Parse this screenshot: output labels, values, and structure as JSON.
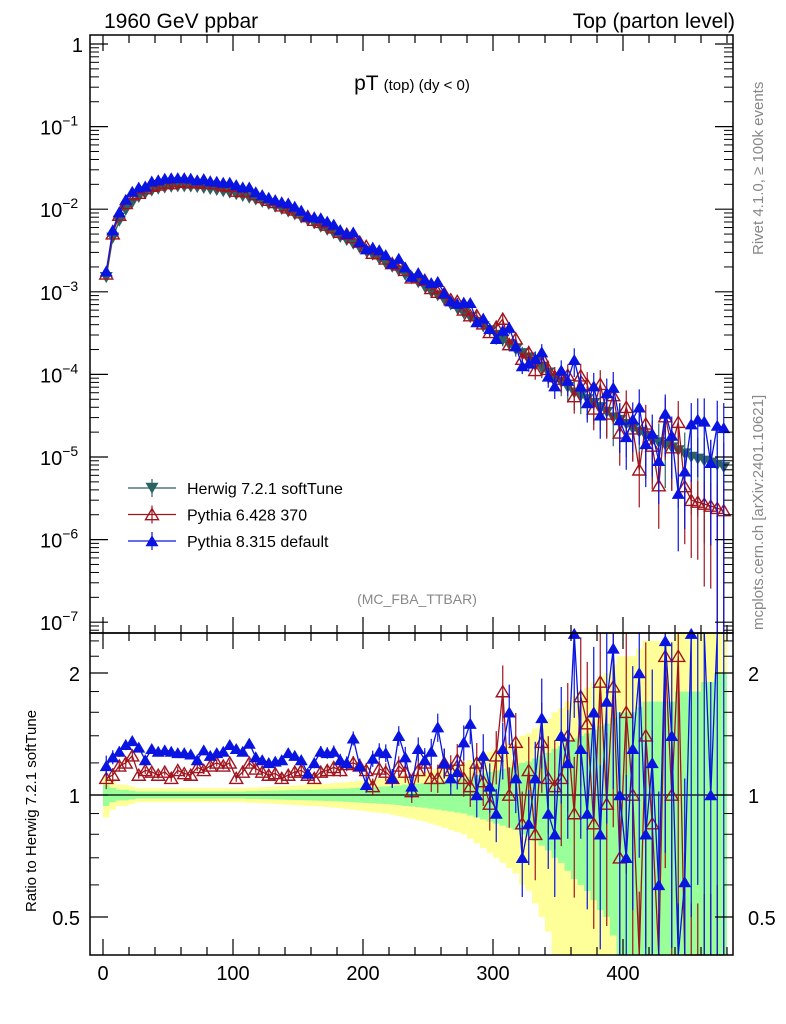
{
  "header": {
    "left": "1960 GeV ppbar",
    "right": "Top (parton level)",
    "title_main": "pT",
    "title_sub": "(top) (dy < 0)",
    "analysis": "(MC_FBA_TTBAR)",
    "side_rivet": "Rivet 4.1.0, ≥ 100k events",
    "side_mcplots": "mcplots.cern.ch [arXiv:2401.10621]"
  },
  "chart_data": {
    "type": "line",
    "title": "pT (top) (dy < 0)",
    "xlabel": "",
    "ylabel_ratio": "Ratio to Herwig 7.2.1 softTune",
    "xlim": [
      -10,
      485
    ],
    "ylim_main": [
      1e-07,
      1.6
    ],
    "ylim_ratio": [
      0.4,
      2.5
    ],
    "yscale": "log",
    "x_ticks": [
      "0",
      "100",
      "200",
      "300",
      "400"
    ],
    "x_tick_values": [
      0,
      100,
      200,
      300,
      400
    ],
    "y_ticks_main": [
      {
        "v": 1,
        "base": "1",
        "exp": ""
      },
      {
        "v": 0.1,
        "base": "10",
        "exp": "−1"
      },
      {
        "v": 0.01,
        "base": "10",
        "exp": "−2"
      },
      {
        "v": 0.001,
        "base": "10",
        "exp": "−3"
      },
      {
        "v": 0.0001,
        "base": "10",
        "exp": "−4"
      },
      {
        "v": 1e-05,
        "base": "10",
        "exp": "−5"
      },
      {
        "v": 1e-06,
        "base": "10",
        "exp": "−6"
      },
      {
        "v": 1e-07,
        "base": "10",
        "exp": "−7"
      }
    ],
    "y_ticks_ratio": [
      {
        "v": 0.5,
        "label": "0.5"
      },
      {
        "v": 1,
        "label": "1"
      },
      {
        "v": 2,
        "label": "2"
      }
    ],
    "legend_position": "lower-left",
    "x_start": 2.5,
    "bin_width": 5,
    "series": [
      {
        "name": "Herwig 7.2.1 softTune",
        "color": "#2e6262",
        "marker": "filled-down-triangle",
        "values": [
          0.0015,
          0.0045,
          0.0072,
          0.0098,
          0.012,
          0.014,
          0.0155,
          0.0167,
          0.0176,
          0.0182,
          0.0186,
          0.0188,
          0.0188,
          0.0187,
          0.0184,
          0.018,
          0.0175,
          0.017,
          0.0164,
          0.0158,
          0.0151,
          0.0144,
          0.0137,
          0.013,
          0.0122,
          0.0115,
          0.0107,
          0.01,
          0.0093,
          0.0086,
          0.0079,
          0.0073,
          0.0067,
          0.0061,
          0.0056,
          0.0051,
          0.0046,
          0.0042,
          0.0038,
          0.0034,
          0.0031,
          0.0028,
          0.0025,
          0.0022,
          0.002,
          0.0018,
          0.0016,
          0.00145,
          0.0013,
          0.00115,
          0.001,
          0.0009,
          0.0008,
          0.0007,
          0.00063,
          0.00055,
          0.00049,
          0.00043,
          0.00038,
          0.00034,
          0.0003,
          0.00026,
          0.00023,
          0.0002,
          0.00018,
          0.00016,
          0.00014,
          0.00012,
          0.000105,
          9e-05,
          8e-05,
          7e-05,
          6e-05,
          5.5e-05,
          5e-05,
          4.5e-05,
          4e-05,
          3.5e-05,
          3e-05,
          2.8e-05,
          2.5e-05,
          2.2e-05,
          2e-05,
          1.8e-05,
          1.6e-05,
          1.5e-05,
          1.4e-05,
          1.3e-05,
          1.2e-05,
          1.1e-05,
          1e-05,
          9.5e-06,
          9e-06,
          8.5e-06,
          8e-06,
          7.5e-06
        ],
        "rel_err": [
          0.06,
          0.04,
          0.03,
          0.03,
          0.025,
          0.02,
          0.02,
          0.02,
          0.02,
          0.02,
          0.02,
          0.02,
          0.02,
          0.02,
          0.02,
          0.02,
          0.02,
          0.02,
          0.02,
          0.02,
          0.02,
          0.02,
          0.022,
          0.022,
          0.023,
          0.024,
          0.025,
          0.026,
          0.027,
          0.028,
          0.029,
          0.03,
          0.031,
          0.032,
          0.033,
          0.035,
          0.036,
          0.038,
          0.04,
          0.042,
          0.044,
          0.046,
          0.048,
          0.05,
          0.053,
          0.056,
          0.06,
          0.063,
          0.067,
          0.07,
          0.075,
          0.08,
          0.085,
          0.09,
          0.095,
          0.1,
          0.11,
          0.12,
          0.13,
          0.14,
          0.15,
          0.16,
          0.17,
          0.18,
          0.2,
          0.21,
          0.23,
          0.25,
          0.27,
          0.3,
          0.32,
          0.35,
          0.38,
          0.4,
          0.42,
          0.45,
          0.48,
          0.5,
          0.55,
          0.6,
          0.6,
          0.6,
          0.65,
          0.7,
          0.7,
          0.7,
          0.7,
          0.7,
          0.8,
          0.8,
          0.8,
          0.8,
          0.9,
          0.9,
          1,
          1
        ]
      },
      {
        "name": "Pythia 6.428 370",
        "color": "#a0141e",
        "marker": "open-triangle",
        "ratio": [
          1.1,
          1.12,
          1.18,
          1.2,
          1.25,
          1.12,
          1.15,
          1.14,
          1.12,
          1.14,
          1.1,
          1.15,
          1.13,
          1.12,
          1.17,
          1.15,
          1.18,
          1.2,
          1.18,
          1.2,
          1.1,
          1.14,
          1.2,
          1.16,
          1.14,
          1.12,
          1.13,
          1.1,
          1.12,
          1.14,
          1.15,
          1.12,
          1.1,
          1.14,
          1.15,
          1.17,
          1.15,
          1.19,
          1.2,
          1.18,
          1.15,
          1.05,
          1.16,
          1.14,
          1.1,
          1.18,
          1.14,
          1.02,
          1.15,
          1.2,
          1.1,
          1.1,
          1.2,
          1.15,
          1.22,
          1.1,
          1.05,
          1.2,
          1.08,
          0.95,
          1.25,
          1.8,
          1.0,
          1.35,
          0.85,
          1.15,
          0.8,
          1.35,
          1.1,
          1.05,
          1.1,
          1.4,
          0.9,
          1.75,
          1.5,
          0.85,
          1.9,
          0.95,
          1.85,
          0.7,
          1.6,
          1.0,
          0.35,
          1.4,
          0.85,
          0.3,
          2.2,
          1.0,
          2.2,
          0.4,
          0.3,
          0.3,
          0.3,
          0.3,
          0.3,
          0.3
        ]
      },
      {
        "name": "Pythia 8.315 default",
        "color": "#0a14e0",
        "marker": "filled-triangle",
        "ratio": [
          1.18,
          1.24,
          1.28,
          1.33,
          1.36,
          1.31,
          1.22,
          1.3,
          1.28,
          1.29,
          1.28,
          1.27,
          1.27,
          1.26,
          1.22,
          1.29,
          1.25,
          1.27,
          1.28,
          1.33,
          1.3,
          1.28,
          1.34,
          1.24,
          1.22,
          1.2,
          1.21,
          1.22,
          1.27,
          1.25,
          1.22,
          1.13,
          1.2,
          1.28,
          1.27,
          1.28,
          1.22,
          1.2,
          1.38,
          1.18,
          1.06,
          1.23,
          1.28,
          1.27,
          1.1,
          1.4,
          1.24,
          1.05,
          1.3,
          1.22,
          1.28,
          1.47,
          1.2,
          1.1,
          1.14,
          1.35,
          1.5,
          1.0,
          1.25,
          1.05,
          0.9,
          1.3,
          1.6,
          1.1,
          0.7,
          0.85,
          1.1,
          1.55,
          0.9,
          0.8,
          1.4,
          1.2,
          2.5,
          1.3,
          0.9,
          1.6,
          0.8,
          1.7,
          2.3,
          1.0,
          0.7,
          1.3,
          2.0,
          0.8,
          1.2,
          0.6,
          2.4,
          1.4,
          0.3,
          0.61,
          2.5,
          3.0,
          3.0,
          1.0,
          3.0,
          3.0
        ]
      }
    ],
    "band_colors": {
      "inner": "#99ff99",
      "outer": "#ffff99"
    }
  }
}
